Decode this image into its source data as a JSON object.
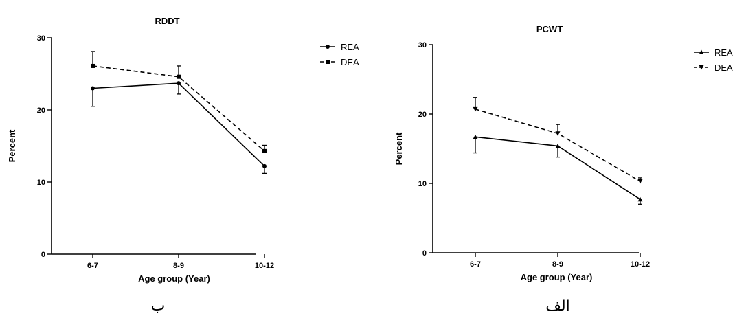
{
  "chart_data": [
    {
      "type": "line",
      "title": "RDDT",
      "xlabel": "Age group (Year)",
      "ylabel": "Percent",
      "categories": [
        "6-7",
        "8-9",
        "10-12"
      ],
      "ylim": [
        0,
        30
      ],
      "yticks": [
        0,
        10,
        20,
        30
      ],
      "legend_position": "right",
      "series": [
        {
          "name": "REA",
          "values": [
            23.0,
            23.7,
            12.2
          ],
          "error": [
            2.5,
            1.5,
            1.0
          ],
          "style": "solid",
          "marker": "circle"
        },
        {
          "name": "DEA",
          "values": [
            26.1,
            24.6,
            14.3
          ],
          "error": [
            2.0,
            1.5,
            0.8
          ],
          "style": "dashed",
          "marker": "square"
        }
      ],
      "caption": "ب"
    },
    {
      "type": "line",
      "title": "PCWT",
      "xlabel": "Age group (Year)",
      "ylabel": "Percent",
      "categories": [
        "6-7",
        "8-9",
        "10-12"
      ],
      "ylim": [
        0,
        30
      ],
      "yticks": [
        0,
        10,
        20,
        30
      ],
      "legend_position": "right",
      "series": [
        {
          "name": "REA",
          "values": [
            16.7,
            15.4,
            7.7
          ],
          "error": [
            2.3,
            1.6,
            0.7
          ],
          "style": "solid",
          "marker": "triangle-up"
        },
        {
          "name": "DEA",
          "values": [
            20.7,
            17.2,
            10.3
          ],
          "error": [
            1.7,
            1.3,
            0.5
          ],
          "style": "dashed",
          "marker": "triangle-down"
        }
      ],
      "caption": "الف"
    }
  ]
}
